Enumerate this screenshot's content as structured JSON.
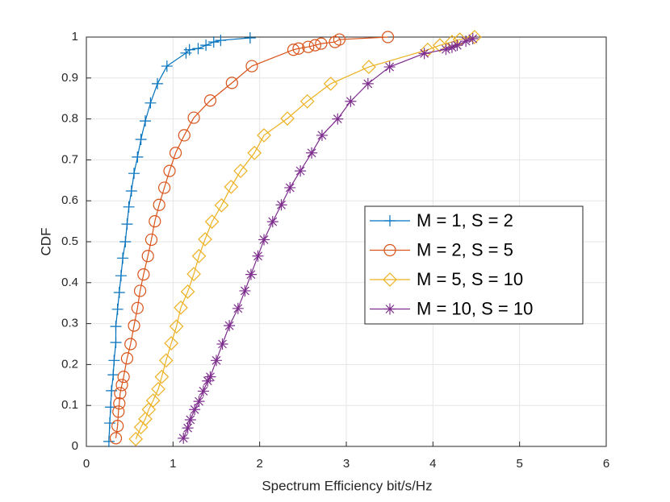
{
  "chart_data": {
    "type": "line",
    "xlabel": "Spectrum Efficiency bit/s/Hz",
    "ylabel": "CDF",
    "xlim": [
      0,
      6
    ],
    "xticks": [
      0,
      1,
      2,
      3,
      4,
      5,
      6
    ],
    "ylim": [
      0,
      1
    ],
    "yticks": [
      0,
      0.1,
      0.2,
      0.3,
      0.4,
      0.5,
      0.6,
      0.7,
      0.8,
      0.9,
      1
    ],
    "grid": true,
    "legend": "right",
    "series": [
      {
        "name": "M = 1,  S = 2",
        "color": "#0072BD",
        "marker": "plus",
        "x": [
          0.26,
          0.27,
          0.28,
          0.29,
          0.31,
          0.32,
          0.34,
          0.34,
          0.36,
          0.38,
          0.4,
          0.42,
          0.45,
          0.47,
          0.49,
          0.52,
          0.55,
          0.59,
          0.63,
          0.68,
          0.74,
          0.82,
          0.93,
          1.15,
          1.19,
          1.29,
          1.38,
          1.47,
          1.55,
          1.89
        ],
        "values": [
          0.012,
          0.057,
          0.096,
          0.136,
          0.175,
          0.21,
          0.254,
          0.293,
          0.335,
          0.376,
          0.417,
          0.46,
          0.5,
          0.543,
          0.585,
          0.624,
          0.667,
          0.707,
          0.75,
          0.795,
          0.839,
          0.886,
          0.929,
          0.961,
          0.969,
          0.972,
          0.98,
          0.988,
          0.992,
          0.998
        ]
      },
      {
        "name": "M = 2,  S = 5",
        "color": "#D95319",
        "marker": "circle",
        "x": [
          0.34,
          0.36,
          0.37,
          0.38,
          0.39,
          0.41,
          0.43,
          0.47,
          0.51,
          0.55,
          0.59,
          0.62,
          0.66,
          0.71,
          0.75,
          0.79,
          0.84,
          0.9,
          0.96,
          1.03,
          1.13,
          1.24,
          1.43,
          1.68,
          1.91,
          2.39,
          2.45,
          2.56,
          2.64,
          2.71,
          2.87,
          2.92,
          3.48
        ],
        "values": [
          0.02,
          0.05,
          0.085,
          0.105,
          0.13,
          0.15,
          0.17,
          0.215,
          0.25,
          0.295,
          0.338,
          0.38,
          0.42,
          0.465,
          0.505,
          0.55,
          0.59,
          0.632,
          0.673,
          0.717,
          0.76,
          0.803,
          0.845,
          0.888,
          0.929,
          0.969,
          0.972,
          0.976,
          0.98,
          0.984,
          0.988,
          0.994,
          1.0
        ]
      },
      {
        "name": "M = 5,  S = 10",
        "color": "#EDB120",
        "marker": "diamond",
        "x": [
          0.57,
          0.63,
          0.68,
          0.72,
          0.77,
          0.83,
          0.87,
          0.92,
          0.98,
          1.04,
          1.09,
          1.17,
          1.24,
          1.3,
          1.37,
          1.45,
          1.56,
          1.67,
          1.78,
          1.94,
          2.05,
          2.32,
          2.55,
          2.82,
          3.26,
          3.94,
          4.08,
          4.22,
          4.31,
          4.48
        ],
        "values": [
          0.018,
          0.047,
          0.067,
          0.09,
          0.112,
          0.14,
          0.17,
          0.21,
          0.252,
          0.293,
          0.339,
          0.378,
          0.421,
          0.465,
          0.506,
          0.549,
          0.589,
          0.634,
          0.673,
          0.717,
          0.76,
          0.801,
          0.843,
          0.886,
          0.927,
          0.969,
          0.98,
          0.988,
          0.994,
          1.0
        ]
      },
      {
        "name": "M = 10,  S = 10",
        "color": "#7E2F8E",
        "marker": "asterisk",
        "x": [
          1.12,
          1.17,
          1.2,
          1.25,
          1.3,
          1.35,
          1.4,
          1.43,
          1.5,
          1.57,
          1.65,
          1.75,
          1.83,
          1.9,
          1.98,
          2.05,
          2.15,
          2.25,
          2.35,
          2.47,
          2.6,
          2.72,
          2.9,
          3.05,
          3.25,
          3.5,
          3.9,
          4.15,
          4.22,
          4.28,
          4.38,
          4.46
        ],
        "values": [
          0.02,
          0.045,
          0.065,
          0.09,
          0.11,
          0.135,
          0.16,
          0.17,
          0.21,
          0.25,
          0.295,
          0.337,
          0.38,
          0.42,
          0.465,
          0.505,
          0.549,
          0.59,
          0.632,
          0.673,
          0.717,
          0.76,
          0.8,
          0.843,
          0.886,
          0.927,
          0.96,
          0.97,
          0.975,
          0.98,
          0.99,
          0.996
        ]
      }
    ]
  }
}
